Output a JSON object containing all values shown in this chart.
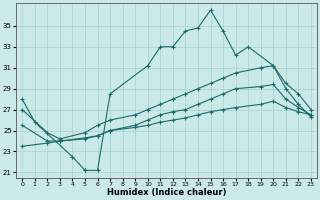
{
  "xlabel": "Humidex (Indice chaleur)",
  "background_color": "#cbe9e9",
  "grid_color": "#a8d0d0",
  "line_color": "#1a6b6b",
  "series_top_x": [
    0,
    1,
    4,
    5,
    5,
    6,
    7,
    10,
    11,
    12,
    13,
    14,
    15,
    16,
    17,
    18,
    20,
    21,
    22,
    23
  ],
  "series_top_y": [
    28.0,
    25.8,
    22.5,
    21.2,
    21.2,
    21.2,
    28.5,
    31.2,
    33.0,
    33.0,
    34.5,
    34.8,
    36.5,
    34.5,
    32.2,
    33.0,
    31.2,
    29.0,
    27.5,
    26.3
  ],
  "series_upper_x": [
    0,
    2,
    3,
    5,
    6,
    7,
    9,
    10,
    11,
    12,
    13,
    14,
    15,
    16,
    17,
    19,
    20,
    21,
    22,
    23
  ],
  "series_upper_y": [
    27.0,
    24.8,
    24.2,
    24.8,
    25.5,
    26.0,
    26.5,
    27.0,
    27.5,
    28.0,
    28.5,
    29.0,
    29.5,
    30.0,
    30.5,
    31.0,
    31.2,
    29.5,
    28.5,
    27.0
  ],
  "series_lower_x": [
    0,
    2,
    3,
    5,
    6,
    7,
    9,
    10,
    11,
    12,
    13,
    14,
    15,
    16,
    17,
    19,
    20,
    21,
    22,
    23
  ],
  "series_lower_y": [
    25.5,
    24.0,
    24.0,
    24.2,
    24.5,
    25.0,
    25.5,
    26.0,
    26.5,
    26.8,
    27.0,
    27.5,
    28.0,
    28.5,
    29.0,
    29.2,
    29.4,
    28.0,
    27.2,
    26.5
  ],
  "series_bottom_x": [
    0,
    2,
    3,
    5,
    6,
    7,
    9,
    10,
    11,
    12,
    13,
    14,
    15,
    16,
    17,
    19,
    20,
    21,
    22,
    23
  ],
  "series_bottom_y": [
    23.5,
    23.8,
    24.0,
    24.3,
    24.5,
    25.0,
    25.3,
    25.5,
    25.8,
    26.0,
    26.2,
    26.5,
    26.8,
    27.0,
    27.2,
    27.5,
    27.8,
    27.2,
    26.8,
    26.5
  ],
  "yticks": [
    21,
    23,
    25,
    27,
    29,
    31,
    33,
    35
  ],
  "xticks": [
    0,
    1,
    2,
    3,
    4,
    5,
    6,
    7,
    8,
    9,
    10,
    11,
    12,
    13,
    14,
    15,
    16,
    17,
    18,
    19,
    20,
    21,
    22,
    23
  ],
  "ylim": [
    20.5,
    37.2
  ],
  "xlim": [
    -0.5,
    23.5
  ]
}
